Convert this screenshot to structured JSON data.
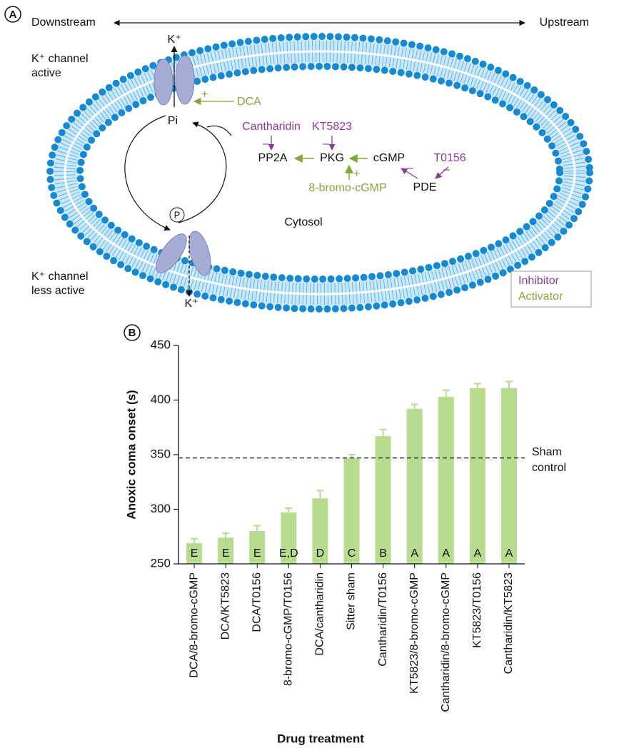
{
  "panel_a": {
    "label": "A",
    "downstream": "Downstream",
    "upstream": "Upstream",
    "k_top": "K⁺",
    "active_lines": [
      "K⁺ channel",
      "active"
    ],
    "dca": "DCA",
    "plus": "+",
    "minus": "–",
    "pi": "Pi",
    "cantharidin": "Cantharidin",
    "kt5823": "KT5823",
    "pp2a": "PP2A",
    "pkg": "PKG",
    "cgmp": "cGMP",
    "t0156": "T0156",
    "pde": "PDE",
    "bromo": "8-bromo-cGMP",
    "p": "P",
    "cytosol": "Cytosol",
    "less_active_lines": [
      "K⁺ channel",
      "less active"
    ],
    "k_bottom": "K⁺",
    "legend": [
      "Inhibitor",
      "Activator"
    ]
  },
  "chart_data": {
    "type": "bar",
    "panel_label": "B",
    "x_label": "Drug treatment",
    "y_label": "Anoxic coma onset (s)",
    "categories": [
      "DCA/8-bromo-cGMP",
      "DCA/KT5823",
      "DCA/T0156",
      "8-bromo-cGMP/T0156",
      "DCA/cantharidin",
      "Sitter sham",
      "Cantharidin/T0156",
      "KT5823/8-bromo-cGMP",
      "Cantharidin/8-bromo-cGMP",
      "KT5823/T0156",
      "Cantharidin/KT5823"
    ],
    "values": [
      269,
      274,
      280,
      297,
      310,
      347,
      367,
      392,
      403,
      411,
      411
    ],
    "errors": [
      4,
      4,
      5,
      4,
      7,
      3,
      6,
      4,
      6,
      4,
      6
    ],
    "group_labels": [
      "E",
      "E",
      "E",
      "E,D",
      "D",
      "C",
      "B",
      "A",
      "A",
      "A",
      "A"
    ],
    "color": "#b8dc8f",
    "ylim": [
      250,
      450
    ],
    "yticks": [
      250,
      300,
      350,
      400,
      450
    ],
    "reference_line": {
      "value": 347,
      "label_lines": [
        "Sham",
        "control"
      ]
    }
  }
}
